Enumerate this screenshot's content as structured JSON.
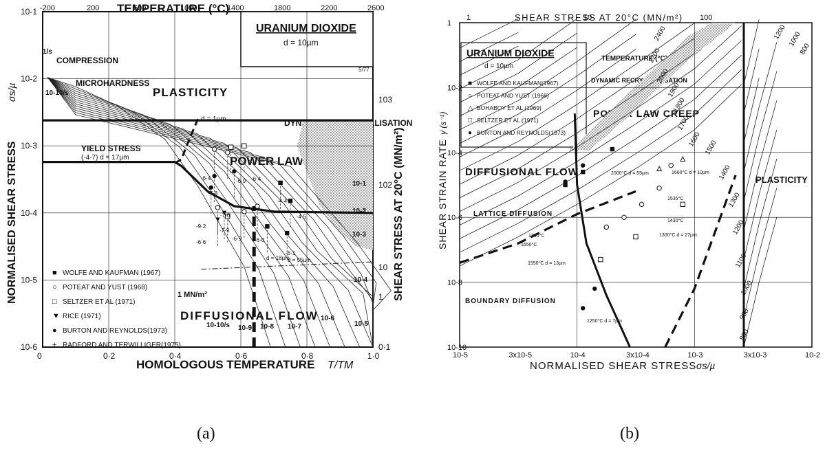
{
  "chart_data": [
    {
      "type": "line",
      "title": "URANIUM DIOXIDE",
      "subtitle": "d = 10µm",
      "code": "5/77",
      "top_axis_title": "TEMPERATURE (°C)",
      "top_ticks": [
        "-200",
        "200",
        "600",
        "1000",
        "1400",
        "1800",
        "2200",
        "2600"
      ],
      "top_tick_values": [
        -200,
        200,
        600,
        1000,
        1400,
        1800,
        2200,
        2600
      ],
      "xlabel": "HOMOLOGOUS TEMPERATURE",
      "xlabel_sym": "T/TM",
      "x_ticks": [
        "0",
        "0·2",
        "0·4",
        "0·6",
        "0·8",
        "1·0"
      ],
      "ylabel": "NORMALISED SHEAR STRESS",
      "ylabel_sym": "σs/µ",
      "y_ticks": [
        "10-1",
        "10-2",
        "10-3",
        "10-4",
        "10-5",
        "10-6"
      ],
      "right_label": "SHEAR STRESS AT 20°C (MN/m²)",
      "right_ticks": [
        "103",
        "102",
        "10",
        "1",
        "0·1"
      ],
      "xlim": [
        0,
        1.0
      ],
      "ylim_log": [
        -6,
        -1
      ],
      "regions": [
        "PLASTICITY",
        "POWER LAW CREEP",
        "DIFFUSIONAL FLOW",
        "DYNAMIC RECRYSTALLISATION"
      ],
      "annotations": [
        "COMPRESSION",
        "MICROHARDNESS",
        "YIELD STRESS",
        "(-4·7) d = 17µm",
        "d = 1µm",
        "1 MN/m²",
        "d = 18µm",
        "d = 55µm"
      ],
      "rate_labels": [
        "1/s",
        "10-10/s",
        "10-1",
        "10-2",
        "10-3",
        "10-4",
        "10-5",
        "10-6",
        "10-7",
        "10-8",
        "10-9",
        "10-10/s"
      ],
      "point_labels": [
        "-6·4",
        "-7·8",
        "-7·6",
        "-6·9",
        "-6·4",
        "-4·4",
        "-4·5",
        "-9·2",
        "-6·6",
        "-7·9",
        "-6·9",
        "-6·0",
        "-6·1"
      ],
      "legend": [
        {
          "marker": "■",
          "label": "WOLFE AND KAUFMAN (1967)"
        },
        {
          "marker": "○",
          "label": "POTEAT AND YUST (1968)"
        },
        {
          "marker": "□",
          "label": "SELTZER ET AL (1971)"
        },
        {
          "marker": "▼",
          "label": "RICE (1971)"
        },
        {
          "marker": "●",
          "label": "BURTON AND REYNOLDS(1973)"
        },
        {
          "marker": "+",
          "label": "RADFORD AND TERWILLIGER(1975)"
        }
      ],
      "boundaries": [
        {
          "name": "plasticity / power-law creep",
          "points": [
            [
              0,
              -2.62
            ],
            [
              1.0,
              -2.62
            ]
          ]
        },
        {
          "name": "yield (low T)",
          "points": [
            [
              0,
              -3.24
            ],
            [
              0.4,
              -3.24
            ],
            [
              0.42,
              -3.3
            ],
            [
              0.5,
              -3.68
            ],
            [
              0.58,
              -3.9
            ],
            [
              0.7,
              -3.98
            ],
            [
              1.0,
              -4.0
            ]
          ]
        },
        {
          "name": "d = 1µm boundary",
          "points": [
            [
              0.47,
              -2.6
            ],
            [
              0.44,
              -2.95
            ],
            [
              0.42,
              -3.2
            ],
            [
              0.4,
              -3.26
            ]
          ]
        },
        {
          "name": "diffusional flow boundary (dashed)",
          "points": [
            [
              0.64,
              -6.0
            ],
            [
              0.64,
              -3.9
            ]
          ]
        },
        {
          "name": "1 MN/m² line",
          "points": [
            [
              0.48,
              -4.84
            ],
            [
              1.0,
              -4.73
            ]
          ]
        }
      ],
      "data_points": [
        {
          "set": "WOLFE AND KAUFMAN",
          "marker": "square-filled",
          "points": [
            [
              0.72,
              -3.55
            ],
            [
              0.75,
              -3.82
            ],
            [
              0.68,
              -4.2
            ],
            [
              0.74,
              -4.3
            ]
          ]
        },
        {
          "set": "POTEAT AND YUST",
          "marker": "circle-open",
          "points": [
            [
              0.52,
              -3.05
            ],
            [
              0.56,
              -3.1
            ],
            [
              0.53,
              -3.92
            ],
            [
              0.61,
              -3.98
            ],
            [
              0.65,
              -3.9
            ]
          ]
        },
        {
          "set": "SELTZER ET AL",
          "marker": "square-open",
          "points": [
            [
              0.57,
              -3.02
            ],
            [
              0.61,
              -3.0
            ],
            [
              0.56,
              -4.05
            ]
          ]
        },
        {
          "set": "RICE",
          "marker": "triangle-down",
          "points": [
            [
              0.53,
              -4.1
            ],
            [
              0.55,
              -4.0
            ]
          ]
        },
        {
          "set": "BURTON AND REYNOLDS",
          "marker": "circle-filled",
          "points": [
            [
              0.52,
              -3.45
            ],
            [
              0.58,
              -3.38
            ],
            [
              0.51,
              -3.62
            ]
          ]
        }
      ]
    },
    {
      "type": "line",
      "title": "URANIUM DIOXIDE",
      "subtitle": "d = 10µm",
      "code": "5/77",
      "top_axis_title": "SHEAR STRESS AT 20°C (MN/m²)",
      "top_ticks": [
        "1",
        "10",
        "100"
      ],
      "xlabel": "NORMALISED SHEAR STRESS",
      "xlabel_sym": "σs/µ",
      "x_ticks": [
        "10-5",
        "3x10-5",
        "10-4",
        "3x10-4",
        "10-3",
        "3x10-3",
        "10-2"
      ],
      "x_tick_values": [
        1e-05,
        3e-05,
        0.0001,
        0.0003,
        0.001,
        0.003,
        0.01
      ],
      "ylabel": "SHEAR STRAIN RATE",
      "ylabel_sym": "γ̇ (s⁻¹)",
      "y_ticks": [
        "1",
        "10-2",
        "10-4",
        "10-6",
        "10-8",
        "10-10"
      ],
      "xlim_log": [
        -5,
        -2
      ],
      "ylim_log": [
        -10,
        0
      ],
      "regions": [
        "DIFFUSIONAL FLOW",
        "LATTICE DIFFUSION",
        "BOUNDARY DIFFUSION",
        "POWER LAW CREEP",
        "PLASTICITY",
        "DYNAMIC RECRYSTALLISATION"
      ],
      "temperature_title": "TEMPERATURE (°C)",
      "isotherms_C": [
        2400,
        2200,
        2000,
        1900,
        1800,
        1700,
        1600,
        1500,
        1400,
        1300,
        1200,
        1100,
        1000,
        900,
        800
      ],
      "isotherms_top_C": [
        1200,
        1000,
        800
      ],
      "annotations": [
        "2000°C d = 55µm",
        "1660°C d = 10µm",
        "1535°C",
        "1430°C",
        "1300°C d = 27µm",
        "1760°C",
        "1650°C",
        "1550°C d = 13µm",
        "1250°C d = 7µm"
      ],
      "legend": [
        {
          "marker": "■",
          "label": "WOLFE AND KAUFMAN(1967)"
        },
        {
          "marker": "○",
          "label": "POTEAT AND YUST (1968)"
        },
        {
          "marker": "△",
          "label": "BOHABOY ET AL (1969)"
        },
        {
          "marker": "□",
          "label": "SELTZER ET AL (1971)"
        },
        {
          "marker": "●",
          "label": "BURTON AND REYNOLDS(1973)"
        }
      ],
      "boundaries": [
        {
          "name": "diffusional flow / power-law creep",
          "points": [
            [
              -4.02,
              -2.8
            ],
            [
              -4.0,
              -5.0
            ],
            [
              -3.92,
              -6.8
            ],
            [
              -3.75,
              -8.4
            ],
            [
              -3.55,
              -10.0
            ]
          ]
        },
        {
          "name": "plasticity",
          "points": [
            [
              -2.58,
              0
            ],
            [
              -2.58,
              -10
            ]
          ]
        },
        {
          "name": "lattice / boundary diffusion (dashed)",
          "points": [
            [
              -5.0,
              -7.4
            ],
            [
              -4.5,
              -6.8
            ],
            [
              -4.0,
              -5.9
            ],
            [
              -3.5,
              -5.2
            ]
          ]
        },
        {
          "name": "power-law breakdown (dashed)",
          "points": [
            [
              -3.25,
              -10.0
            ],
            [
              -3.0,
              -8.2
            ],
            [
              -2.8,
              -6.2
            ],
            [
              -2.65,
              -4.7
            ]
          ]
        }
      ],
      "data_points": [
        {
          "set": "WOLFE AND KAUFMAN",
          "marker": "square-filled",
          "points": [
            [
              -3.7,
              -3.9
            ],
            [
              -3.95,
              -4.6
            ],
            [
              -4.1,
              -5.0
            ]
          ]
        },
        {
          "set": "POTEAT AND YUST",
          "marker": "circle-open",
          "points": [
            [
              -3.2,
              -4.4
            ],
            [
              -3.3,
              -5.1
            ],
            [
              -3.45,
              -5.6
            ],
            [
              -3.6,
              -6.0
            ],
            [
              -3.75,
              -6.3
            ]
          ]
        },
        {
          "set": "BOHABOY ET AL",
          "marker": "triangle-open",
          "points": [
            [
              -3.1,
              -4.2
            ],
            [
              -3.3,
              -4.5
            ]
          ]
        },
        {
          "set": "SELTZER ET AL",
          "marker": "square-open",
          "points": [
            [
              -3.1,
              -5.6
            ],
            [
              -3.5,
              -6.6
            ],
            [
              -3.8,
              -7.3
            ]
          ]
        },
        {
          "set": "BURTON AND REYNOLDS",
          "marker": "circle-filled",
          "points": [
            [
              -3.95,
              -4.4
            ],
            [
              -4.1,
              -4.9
            ],
            [
              -3.85,
              -8.2
            ],
            [
              -3.95,
              -8.8
            ]
          ]
        }
      ]
    }
  ],
  "captions": [
    "(a)",
    "(b)"
  ]
}
